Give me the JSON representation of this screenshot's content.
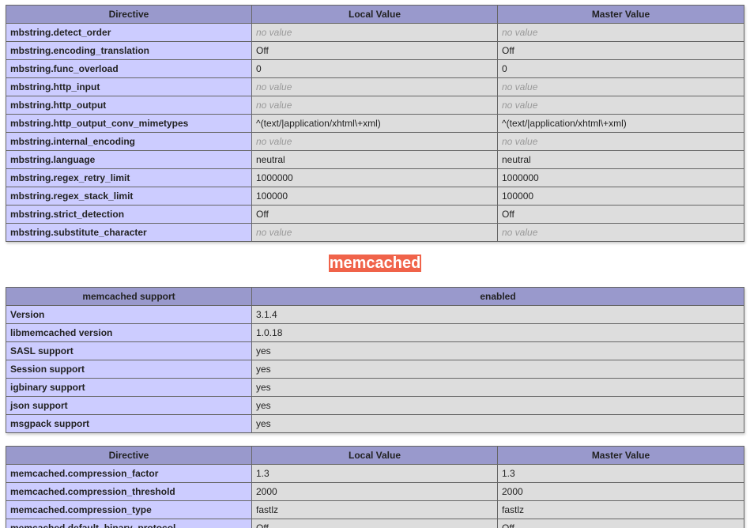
{
  "mbstring_table": {
    "headers": [
      "Directive",
      "Local Value",
      "Master Value"
    ],
    "rows": [
      [
        "mbstring.detect_order",
        "no value",
        "no value"
      ],
      [
        "mbstring.encoding_translation",
        "Off",
        "Off"
      ],
      [
        "mbstring.func_overload",
        "0",
        "0"
      ],
      [
        "mbstring.http_input",
        "no value",
        "no value"
      ],
      [
        "mbstring.http_output",
        "no value",
        "no value"
      ],
      [
        "mbstring.http_output_conv_mimetypes",
        "^(text/|application/xhtml\\+xml)",
        "^(text/|application/xhtml\\+xml)"
      ],
      [
        "mbstring.internal_encoding",
        "no value",
        "no value"
      ],
      [
        "mbstring.language",
        "neutral",
        "neutral"
      ],
      [
        "mbstring.regex_retry_limit",
        "1000000",
        "1000000"
      ],
      [
        "mbstring.regex_stack_limit",
        "100000",
        "100000"
      ],
      [
        "mbstring.strict_detection",
        "Off",
        "Off"
      ],
      [
        "mbstring.substitute_character",
        "no value",
        "no value"
      ]
    ]
  },
  "section_title": "memcached",
  "support_table": {
    "headers": [
      "memcached support",
      "enabled"
    ],
    "rows": [
      [
        "Version",
        "3.1.4"
      ],
      [
        "libmemcached version",
        "1.0.18"
      ],
      [
        "SASL support",
        "yes"
      ],
      [
        "Session support",
        "yes"
      ],
      [
        "igbinary support",
        "yes"
      ],
      [
        "json support",
        "yes"
      ],
      [
        "msgpack support",
        "yes"
      ]
    ]
  },
  "memcached_table": {
    "headers": [
      "Directive",
      "Local Value",
      "Master Value"
    ],
    "rows": [
      [
        "memcached.compression_factor",
        "1.3",
        "1.3"
      ],
      [
        "memcached.compression_threshold",
        "2000",
        "2000"
      ],
      [
        "memcached.compression_type",
        "fastlz",
        "fastlz"
      ],
      [
        "memcached.default_binary_protocol",
        "Off",
        "Off"
      ]
    ]
  },
  "colors": {
    "header": "#9999cc",
    "directive": "#ccccff",
    "value": "#dddddd",
    "title_bg": "#f0634a"
  }
}
